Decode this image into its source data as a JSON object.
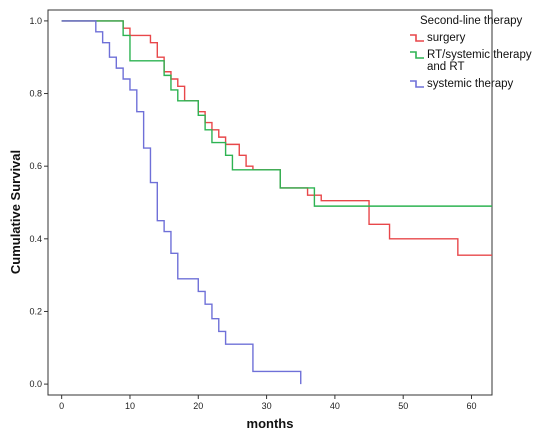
{
  "chart_data": {
    "type": "line",
    "title": "",
    "xlabel": "months",
    "ylabel": "Cumulative Survival",
    "xlim": [
      -2,
      63
    ],
    "ylim": [
      -0.03,
      1.03
    ],
    "x_ticks": [
      0,
      10,
      20,
      30,
      40,
      50,
      60
    ],
    "y_ticks": [
      0.0,
      0.2,
      0.4,
      0.6,
      0.8,
      1.0
    ],
    "y_tick_labels": [
      "0.0",
      "0.2",
      "0.4",
      "0.6",
      "0.8",
      "1.0"
    ],
    "legend": {
      "title": "Second-line therapy",
      "placement": "top-right"
    },
    "series": [
      {
        "name": "surgery",
        "color": "#e8474a",
        "step": true,
        "points": [
          [
            0,
            1.0
          ],
          [
            8,
            1.0
          ],
          [
            9,
            0.98
          ],
          [
            10,
            0.96
          ],
          [
            12,
            0.96
          ],
          [
            13,
            0.94
          ],
          [
            14,
            0.9
          ],
          [
            15,
            0.86
          ],
          [
            16,
            0.84
          ],
          [
            17,
            0.82
          ],
          [
            18,
            0.78
          ],
          [
            20,
            0.75
          ],
          [
            21,
            0.72
          ],
          [
            22,
            0.7
          ],
          [
            23,
            0.68
          ],
          [
            24,
            0.66
          ],
          [
            26,
            0.63
          ],
          [
            27,
            0.6
          ],
          [
            28,
            0.59
          ],
          [
            30,
            0.59
          ],
          [
            32,
            0.54
          ],
          [
            35,
            0.54
          ],
          [
            36,
            0.52
          ],
          [
            38,
            0.505
          ],
          [
            45,
            0.505
          ],
          [
            45,
            0.44
          ],
          [
            48,
            0.4
          ],
          [
            56,
            0.4
          ],
          [
            58,
            0.355
          ],
          [
            63,
            0.355
          ]
        ]
      },
      {
        "name": "RT/systemic therapy and RT",
        "color": "#2db352",
        "step": true,
        "points": [
          [
            0,
            1.0
          ],
          [
            8,
            1.0
          ],
          [
            9,
            0.96
          ],
          [
            10,
            0.89
          ],
          [
            14,
            0.89
          ],
          [
            15,
            0.85
          ],
          [
            16,
            0.81
          ],
          [
            17,
            0.78
          ],
          [
            19,
            0.78
          ],
          [
            20,
            0.74
          ],
          [
            21,
            0.7
          ],
          [
            22,
            0.665
          ],
          [
            24,
            0.63
          ],
          [
            25,
            0.59
          ],
          [
            30,
            0.59
          ],
          [
            32,
            0.54
          ],
          [
            36,
            0.54
          ],
          [
            37,
            0.49
          ],
          [
            63,
            0.49
          ]
        ]
      },
      {
        "name": "systemic therapy",
        "color": "#6f70d8",
        "step": true,
        "points": [
          [
            0,
            1.0
          ],
          [
            4,
            1.0
          ],
          [
            5,
            0.97
          ],
          [
            6,
            0.94
          ],
          [
            7,
            0.9
          ],
          [
            8,
            0.87
          ],
          [
            9,
            0.84
          ],
          [
            10,
            0.81
          ],
          [
            11,
            0.75
          ],
          [
            12,
            0.65
          ],
          [
            13,
            0.555
          ],
          [
            14,
            0.45
          ],
          [
            15,
            0.42
          ],
          [
            16,
            0.36
          ],
          [
            17,
            0.29
          ],
          [
            19,
            0.29
          ],
          [
            20,
            0.255
          ],
          [
            21,
            0.22
          ],
          [
            22,
            0.18
          ],
          [
            23,
            0.145
          ],
          [
            24,
            0.11
          ],
          [
            27,
            0.11
          ],
          [
            28,
            0.035
          ],
          [
            35,
            0.035
          ],
          [
            35,
            0.0
          ]
        ]
      }
    ]
  }
}
